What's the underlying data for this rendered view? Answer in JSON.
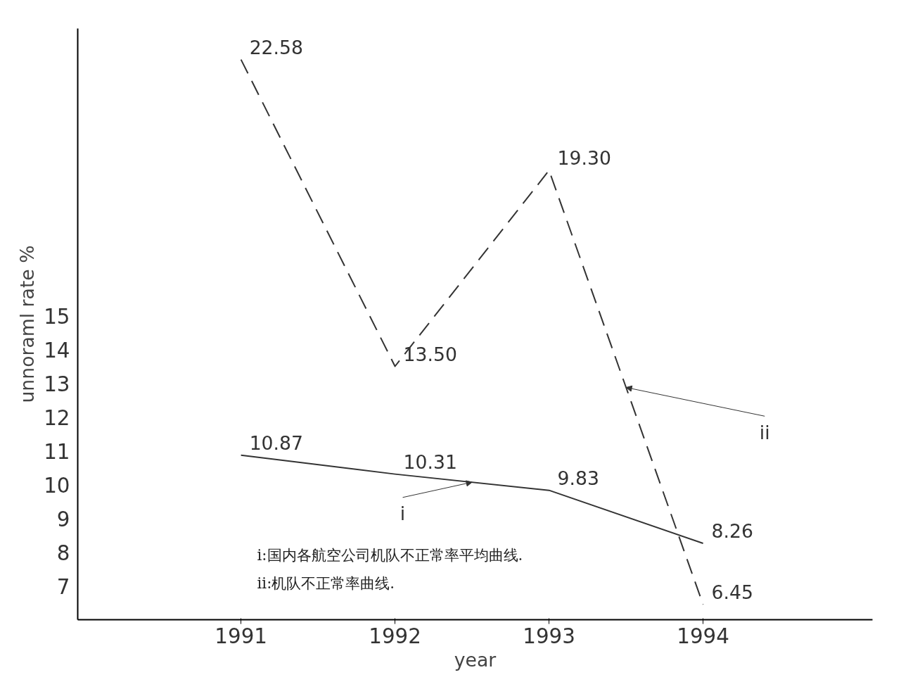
{
  "chart_data": {
    "type": "line",
    "xlabel": "year",
    "ylabel": "unnoraml rate %",
    "x": [
      1991,
      1992,
      1993,
      1994
    ],
    "xlim": [
      1989.94,
      1995.1
    ],
    "xticks": [
      1991,
      1992,
      1993,
      1994
    ],
    "ylim": [
      6.0,
      23.5
    ],
    "yticks": [
      7,
      8,
      9,
      10,
      11,
      12,
      13,
      14,
      15
    ],
    "series": [
      {
        "name": "i",
        "color": "#333333",
        "line_style": "solid",
        "values": [
          10.87,
          10.31,
          9.83,
          8.26
        ],
        "value_labels": [
          "10.87",
          "10.31",
          "9.83",
          "8.26"
        ]
      },
      {
        "name": "ii",
        "color": "#333333",
        "line_style": "dashed",
        "values": [
          22.58,
          13.5,
          19.3,
          6.45
        ],
        "value_labels": [
          "22.58",
          "13.50",
          "19.30",
          "6.45"
        ]
      }
    ],
    "grid": false,
    "marker": "none",
    "annotations": [
      "i:国内各航空公司机队不正常率平均曲线.",
      "ii:机队不正常率曲线."
    ]
  }
}
